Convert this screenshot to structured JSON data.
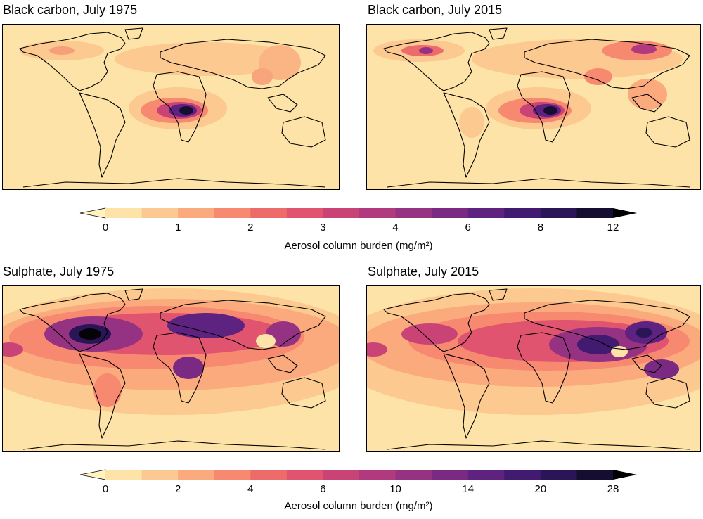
{
  "panels": [
    {
      "id": "bc-1975",
      "title": "Black carbon, July 1975",
      "species": "black carbon",
      "year": "1975"
    },
    {
      "id": "bc-2015",
      "title": "Black carbon, July 2015",
      "species": "black carbon",
      "year": "2015"
    },
    {
      "id": "so4-1975",
      "title": "Sulphate, July 1975",
      "species": "sulphate",
      "year": "1975"
    },
    {
      "id": "so4-2015",
      "title": "Sulphate, July 2015",
      "species": "sulphate",
      "year": "2015"
    }
  ],
  "colorbars": [
    {
      "id": "bc",
      "label": "Aerosol column burden (mg/m²)",
      "tick_labels": [
        "0",
        "1",
        "2",
        "3",
        "4",
        "6",
        "8",
        "12"
      ],
      "levels": [
        0,
        0.5,
        1,
        1.5,
        2,
        2.5,
        3,
        3.5,
        4,
        5,
        6,
        7,
        8,
        10,
        12
      ],
      "extend": "both"
    },
    {
      "id": "so4",
      "label": "Aerosol column burden (mg/m²)",
      "tick_labels": [
        "0",
        "2",
        "4",
        "6",
        "10",
        "14",
        "20",
        "28"
      ],
      "levels": [
        0,
        1,
        2,
        3,
        4,
        5,
        6,
        8,
        10,
        12,
        14,
        17,
        20,
        24,
        28
      ],
      "extend": "both"
    }
  ],
  "colors": {
    "palette": [
      "#fde3a7",
      "#fcc990",
      "#fbaa7e",
      "#f6896f",
      "#ee6b6b",
      "#e05470",
      "#c94377",
      "#b13a7e",
      "#963282",
      "#7a2a82",
      "#5e2280",
      "#421a70",
      "#2a1556",
      "#160d33",
      "#050208"
    ],
    "under": "#fff3c2",
    "over": "#000004",
    "land_outline": "#000000"
  }
}
